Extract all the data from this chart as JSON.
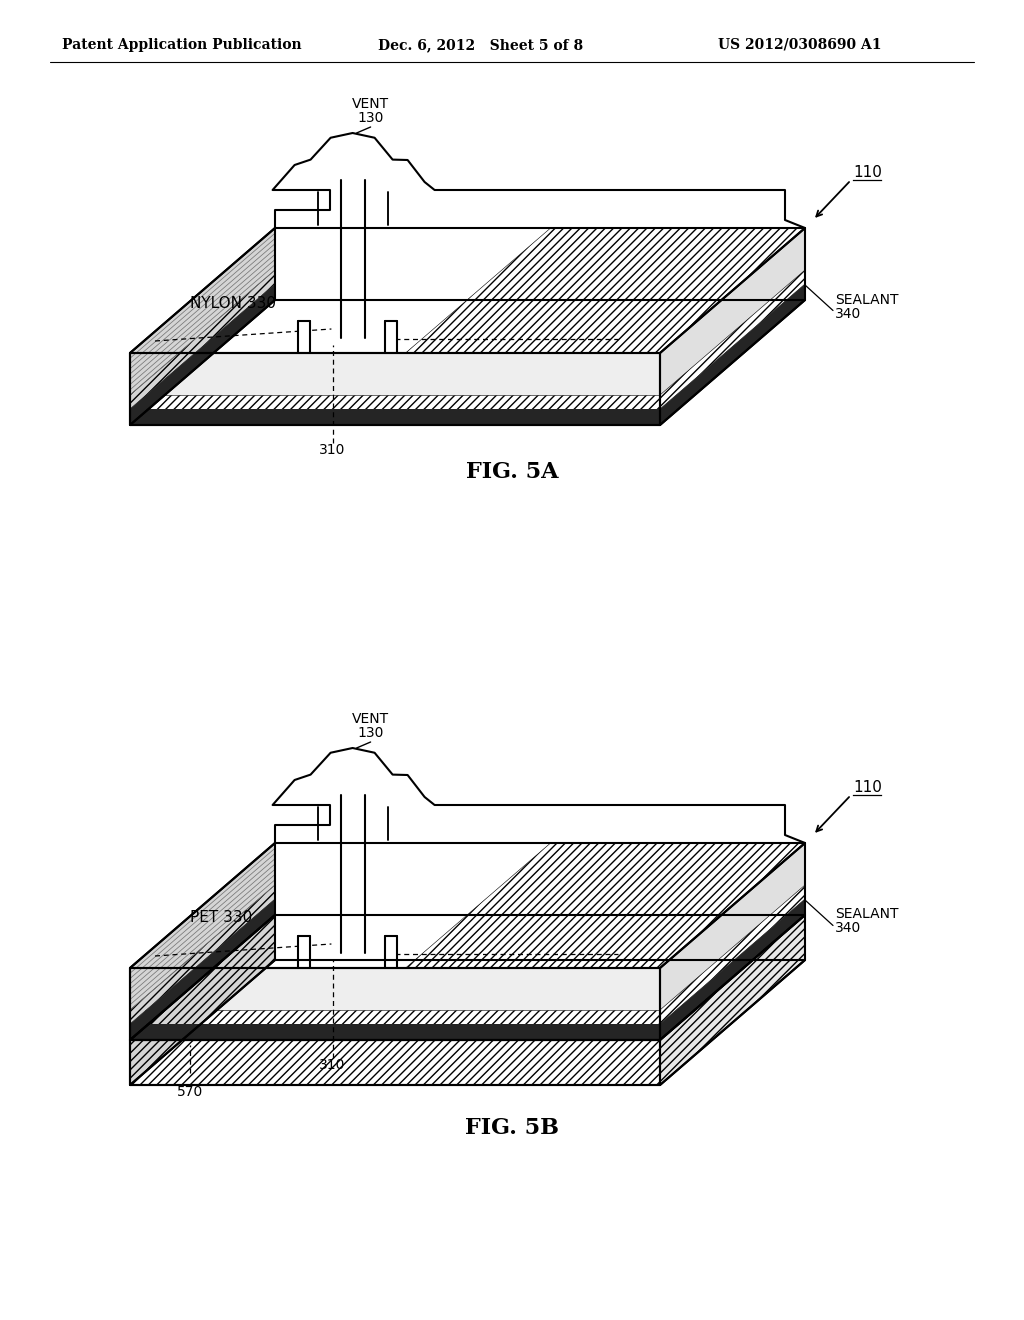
{
  "background_color": "#ffffff",
  "header_left": "Patent Application Publication",
  "header_center": "Dec. 6, 2012   Sheet 5 of 8",
  "header_right": "US 2012/0308690 A1",
  "fig5a_caption": "FIG. 5A",
  "fig5b_caption": "FIG. 5B",
  "label_110": "110",
  "label_130": "130",
  "label_vent": "VENT",
  "label_310_5a": "310",
  "label_sealant_5a": "SEALANT",
  "label_340_5a": "340",
  "label_nylon": "NYLON 330",
  "label_pet": "PET 330",
  "label_310_5b": "310",
  "label_sealant_5b": "SEALANT",
  "label_340_5b": "340",
  "label_570": "570"
}
